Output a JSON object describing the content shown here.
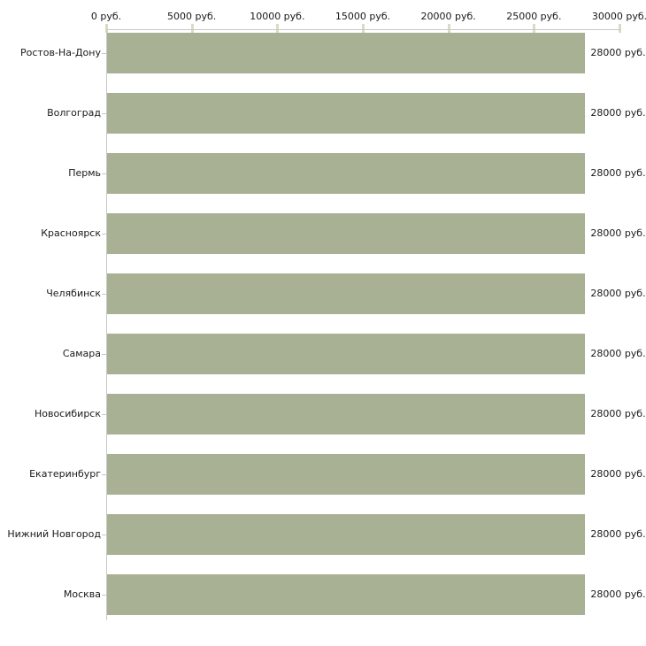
{
  "chart_data": {
    "type": "bar",
    "orientation": "horizontal",
    "title": "",
    "xlabel": "",
    "ylabel": "",
    "unit": "руб.",
    "categories": [
      "Ростов-На-Дону",
      "Волгоград",
      "Пермь",
      "Красноярск",
      "Челябинск",
      "Самара",
      "Новосибирск",
      "Екатеринбург",
      "Нижний Новгород",
      "Москва"
    ],
    "values": [
      28000,
      28000,
      28000,
      28000,
      28000,
      28000,
      28000,
      28000,
      28000,
      28000
    ],
    "value_labels": [
      "28000 руб.",
      "28000 руб.",
      "28000 руб.",
      "28000 руб.",
      "28000 руб.",
      "28000 руб.",
      "28000 руб.",
      "28000 руб.",
      "28000 руб.",
      "28000 руб."
    ],
    "x_axis": {
      "position": "top",
      "min": 0,
      "max": 30000,
      "ticks": [
        0,
        5000,
        10000,
        15000,
        20000,
        25000,
        30000
      ],
      "tick_labels": [
        "0 руб.",
        "5000 руб.",
        "10000 руб.",
        "15000 руб.",
        "20000 руб.",
        "25000 руб.",
        "30000 руб."
      ]
    },
    "grid": false,
    "legend": false,
    "colors": {
      "bar": "#a9b194",
      "axis_line": "#c9c9c9",
      "axis_tick_mark": "#d9dcc3",
      "category_tick": "#c6c6c6",
      "text": "#1a1a1a",
      "background": "#ffffff"
    }
  }
}
